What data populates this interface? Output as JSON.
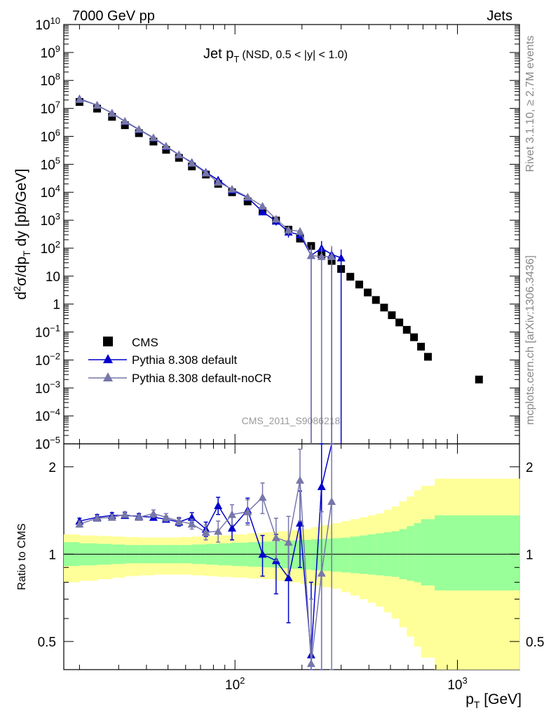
{
  "header": {
    "left": "7000 GeV pp",
    "right": "Jets"
  },
  "title": {
    "main": "Jet p",
    "sub": "T",
    "cond": "(NSD, 0.5 < |y| < 1.0)"
  },
  "side": {
    "rivet": "Rivet 3.1.10, ≥ 2.7M events",
    "mcplots": "mcplots.cern.ch [arXiv:1306.3436]"
  },
  "watermark": "CMS_2011_S9086218",
  "axes": {
    "ylabel_top": "d²σ/dp_T dy [pb/GeV]",
    "ylabel_ratio": "Ratio to CMS",
    "xlabel": "p_T [GeV]",
    "x_ticks": [
      "10^2",
      "10^3"
    ],
    "y_ticks_top": [
      "10^10",
      "10^9",
      "10^8",
      "10^7",
      "10^6",
      "10^5",
      "10^4",
      "10^3",
      "10^2",
      "10",
      "1",
      "10^-1",
      "10^-2",
      "10^-3",
      "10^-4",
      "10^-5"
    ],
    "y_ticks_ratio": [
      "2",
      "1",
      "0.5"
    ]
  },
  "legend": {
    "position": "lower-left",
    "items": [
      {
        "label": "CMS",
        "color": "#000000",
        "marker": "square"
      },
      {
        "label": "Pythia 8.308 default",
        "color": "#0000cc",
        "marker": "triangle"
      },
      {
        "label": "Pythia 8.308 default-noCR",
        "color": "#7777aa",
        "marker": "triangle"
      }
    ]
  },
  "chart_data": [
    {
      "type": "scatter",
      "xscale": "log",
      "yscale": "log",
      "xlim": [
        17,
        1900
      ],
      "ylim": [
        1e-05,
        10000000000.0
      ],
      "series": [
        {
          "name": "CMS",
          "color": "#000000",
          "marker": "square",
          "x": [
            20,
            24,
            28,
            32,
            37,
            43,
            49,
            56,
            64,
            74,
            84,
            97,
            114,
            133,
            153,
            174,
            196,
            220,
            245,
            272,
            300,
            330,
            362,
            395,
            430,
            468,
            507,
            548,
            592,
            638,
            686,
            737,
            1250
          ],
          "y": [
            17000000.0,
            9800000.0,
            5000000.0,
            2500000.0,
            1300000.0,
            650000.0,
            330000.0,
            170000.0,
            84000.0,
            43000.0,
            20000.0,
            10000.0,
            4700.0,
            2100.0,
            980.0,
            460.0,
            220.0,
            120.0,
            60.0,
            35.0,
            18.0,
            9.5,
            5.0,
            2.6,
            1.4,
            0.75,
            0.4,
            0.22,
            0.12,
            0.065,
            0.03,
            0.013,
            0.002
          ]
        },
        {
          "name": "Pythia 8.308 default",
          "color": "#0000cc",
          "marker": "triangle",
          "x": [
            20,
            24,
            28,
            32,
            37,
            43,
            49,
            56,
            64,
            74,
            84,
            97,
            114,
            133,
            153,
            174,
            196,
            220,
            245,
            272,
            300
          ],
          "y": [
            22000000.0,
            13000000.0,
            6800000.0,
            3400000.0,
            1750000.0,
            880000.0,
            435000.0,
            220000.0,
            116000.0,
            52000.0,
            27500.0,
            12000.0,
            6500.0,
            2000.0,
            930.0,
            380.0,
            300.0,
            55.0,
            100.0,
            60.0,
            45.0
          ],
          "err_low": [
            20000000.0,
            11800000.0,
            6200000.0,
            3100000.0,
            1600000.0,
            800000.0,
            400000.0,
            200000.0,
            105000.0,
            46000.0,
            24000.0,
            10000.0,
            5400.0,
            1500.0,
            650.0,
            240.0,
            180.0,
            1e-05,
            1e-05,
            1e-05,
            1e-05
          ],
          "err_high": [
            24000000.0,
            14200000.0,
            7400000.0,
            3700000.0,
            1900000.0,
            960000.0,
            470000.0,
            240000.0,
            127000.0,
            58000.0,
            31000.0,
            14000.0,
            7600.0,
            2500.0,
            1200.0,
            520.0,
            420.0,
            120.0,
            180.0,
            100.0,
            90.0
          ]
        },
        {
          "name": "Pythia 8.308 default-noCR",
          "color": "#7777aa",
          "marker": "triangle",
          "x": [
            20,
            24,
            28,
            32,
            37,
            43,
            49,
            56,
            64,
            74,
            84,
            97,
            114,
            133,
            153,
            174,
            196,
            220,
            245,
            272
          ],
          "y": [
            21000000.0,
            13000000.0,
            6700000.0,
            3500000.0,
            1800000.0,
            900000.0,
            450000.0,
            220000.0,
            110000.0,
            49000.0,
            23000.0,
            13000.0,
            6800.0,
            3200.0,
            1100.0,
            450.0,
            400.0,
            55.0,
            50.0,
            50.0
          ],
          "err_low": [
            19000000.0,
            11800000.0,
            6100000.0,
            3200000.0,
            1650000.0,
            820000.0,
            410000.0,
            200000.0,
            100000.0,
            44000.0,
            20000.0,
            11000.0,
            5700.0,
            2500.0,
            800.0,
            300.0,
            260.0,
            1e-05,
            1e-05,
            1e-05
          ],
          "err_high": [
            23000000.0,
            14200000.0,
            7300000.0,
            3800000.0,
            1950000.0,
            980000.0,
            490000.0,
            240000.0,
            120000.0,
            54000.0,
            26000.0,
            15000.0,
            7900.0,
            3900.0,
            1400.0,
            600.0,
            540.0,
            130.0,
            110.0,
            120.0
          ]
        }
      ]
    },
    {
      "type": "scatter",
      "xscale": "log",
      "yscale": "log",
      "xlim": [
        17,
        1900
      ],
      "ylim": [
        0.4,
        2.4
      ],
      "band_edges": [
        17,
        20,
        24,
        28,
        32,
        37,
        43,
        49,
        56,
        64,
        74,
        84,
        97,
        114,
        133,
        153,
        174,
        196,
        220,
        245,
        272,
        300,
        330,
        362,
        395,
        430,
        468,
        507,
        548,
        592,
        638,
        686,
        790,
        1900
      ],
      "band_green_low": [
        0.91,
        0.915,
        0.92,
        0.925,
        0.93,
        0.93,
        0.93,
        0.93,
        0.93,
        0.925,
        0.92,
        0.915,
        0.91,
        0.905,
        0.9,
        0.895,
        0.89,
        0.885,
        0.88,
        0.875,
        0.87,
        0.865,
        0.86,
        0.855,
        0.85,
        0.845,
        0.84,
        0.835,
        0.82,
        0.81,
        0.8,
        0.78,
        0.75
      ],
      "band_green_high": [
        1.1,
        1.09,
        1.085,
        1.08,
        1.075,
        1.075,
        1.075,
        1.075,
        1.075,
        1.08,
        1.085,
        1.09,
        1.095,
        1.1,
        1.105,
        1.11,
        1.115,
        1.12,
        1.125,
        1.13,
        1.135,
        1.14,
        1.15,
        1.16,
        1.17,
        1.18,
        1.19,
        1.2,
        1.22,
        1.25,
        1.28,
        1.32,
        1.36
      ],
      "band_yellow_low": [
        0.8,
        0.81,
        0.82,
        0.83,
        0.84,
        0.845,
        0.85,
        0.85,
        0.85,
        0.845,
        0.84,
        0.835,
        0.83,
        0.825,
        0.82,
        0.81,
        0.8,
        0.79,
        0.78,
        0.77,
        0.76,
        0.74,
        0.72,
        0.7,
        0.68,
        0.66,
        0.63,
        0.6,
        0.56,
        0.52,
        0.48,
        0.44,
        0.4
      ],
      "band_yellow_high": [
        1.17,
        1.16,
        1.155,
        1.15,
        1.145,
        1.14,
        1.14,
        1.14,
        1.145,
        1.15,
        1.155,
        1.16,
        1.17,
        1.18,
        1.19,
        1.2,
        1.21,
        1.22,
        1.24,
        1.26,
        1.28,
        1.3,
        1.32,
        1.34,
        1.36,
        1.38,
        1.42,
        1.46,
        1.52,
        1.58,
        1.66,
        1.72,
        1.82
      ],
      "reference": 1.0,
      "series": [
        {
          "name": "Pythia 8.308 default",
          "color": "#0000cc",
          "x": [
            20,
            24,
            28,
            32,
            37,
            43,
            49,
            56,
            64,
            74,
            84,
            97,
            114,
            133,
            153,
            174,
            196,
            220,
            245,
            272
          ],
          "y": [
            1.3,
            1.34,
            1.36,
            1.36,
            1.35,
            1.34,
            1.32,
            1.29,
            1.34,
            1.22,
            1.47,
            1.23,
            1.42,
            1.0,
            0.95,
            0.83,
            1.28,
            0.45,
            1.71,
            2.4
          ],
          "err_low": [
            1.27,
            1.31,
            1.33,
            1.33,
            1.32,
            1.31,
            1.29,
            1.25,
            1.29,
            1.15,
            1.37,
            1.12,
            1.28,
            0.84,
            0.73,
            0.58,
            0.9,
            0.4,
            0.4,
            2.4
          ],
          "err_high": [
            1.33,
            1.37,
            1.39,
            1.39,
            1.38,
            1.37,
            1.35,
            1.33,
            1.39,
            1.29,
            1.57,
            1.34,
            1.56,
            1.16,
            1.17,
            1.08,
            1.65,
            0.8,
            2.4,
            2.4
          ]
        },
        {
          "name": "Pythia 8.308 default-noCR",
          "color": "#7777aa",
          "x": [
            20,
            24,
            28,
            32,
            37,
            43,
            49,
            56,
            64,
            74,
            84,
            97,
            114,
            133,
            153,
            174,
            196,
            220,
            245,
            272
          ],
          "y": [
            1.27,
            1.33,
            1.34,
            1.37,
            1.34,
            1.38,
            1.34,
            1.3,
            1.27,
            1.19,
            1.2,
            1.37,
            1.4,
            1.57,
            1.14,
            1.1,
            1.8,
            0.42,
            0.86,
            1.52
          ],
          "err_low": [
            1.24,
            1.3,
            1.31,
            1.34,
            1.31,
            1.34,
            1.3,
            1.26,
            1.22,
            1.12,
            1.1,
            1.26,
            1.26,
            1.38,
            0.95,
            0.85,
            1.3,
            0.4,
            0.4,
            0.4
          ],
          "err_high": [
            1.3,
            1.36,
            1.37,
            1.4,
            1.37,
            1.42,
            1.38,
            1.34,
            1.32,
            1.26,
            1.3,
            1.48,
            1.54,
            1.76,
            1.33,
            1.35,
            2.3,
            0.7,
            1.4,
            2.4
          ]
        }
      ]
    }
  ]
}
